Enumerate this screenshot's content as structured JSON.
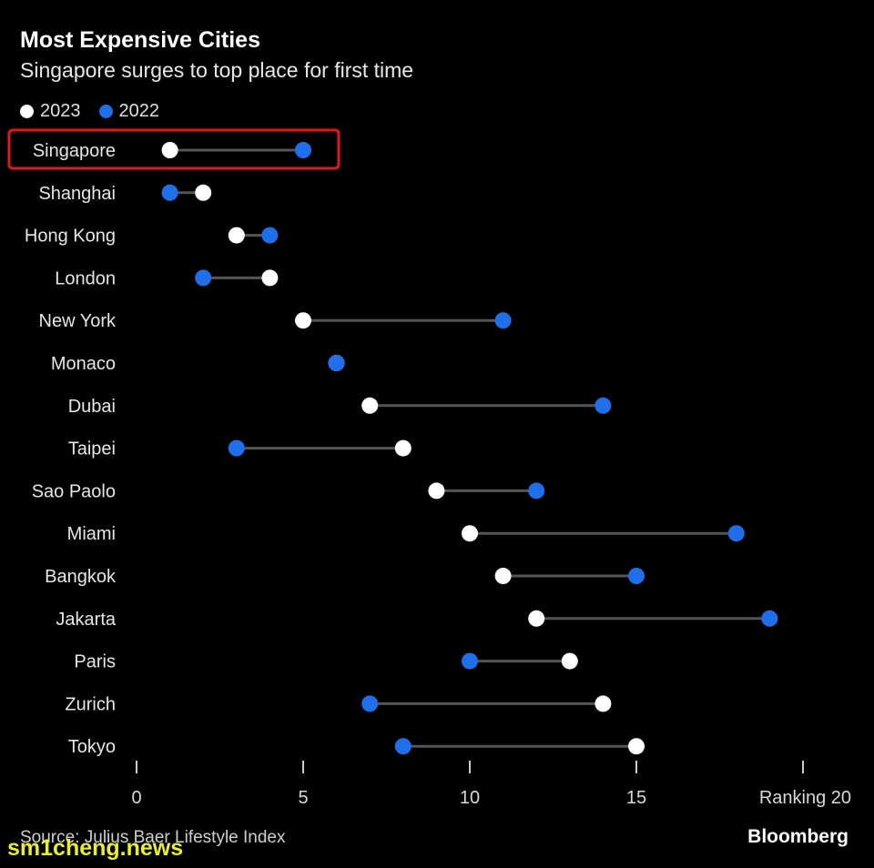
{
  "chart_data": {
    "type": "dot-plot",
    "title": "Most Expensive Cities",
    "subtitle": "Singapore surges to top place for first time",
    "series": [
      {
        "name": "2023",
        "color": "#ffffff"
      },
      {
        "name": "2022",
        "color": "#1f6feb"
      }
    ],
    "categories": [
      "Singapore",
      "Shanghai",
      "Hong Kong",
      "London",
      "New York",
      "Monaco",
      "Dubai",
      "Taipei",
      "Sao Paolo",
      "Miami",
      "Bangkok",
      "Jakarta",
      "Paris",
      "Zurich",
      "Tokyo"
    ],
    "rank_2023": [
      1,
      2,
      3,
      4,
      5,
      6,
      7,
      8,
      9,
      10,
      11,
      12,
      13,
      14,
      15
    ],
    "rank_2022": [
      5,
      1,
      4,
      2,
      11,
      6,
      14,
      3,
      12,
      18,
      15,
      19,
      10,
      7,
      8
    ],
    "highlight": "Singapore",
    "x_ticks": [
      "0",
      "5",
      "10",
      "15"
    ],
    "x_axis_label": "Ranking 20",
    "xlim": [
      0,
      20
    ],
    "grid": false,
    "legend_position": "top-left"
  },
  "footer": {
    "source": "Source: Julius Baer Lifestyle Index",
    "brand": "Bloomberg",
    "watermark": "sm1cheng.news"
  },
  "colors": {
    "background": "#000000",
    "connector": "#555555",
    "highlight_box": "#e0191f",
    "dot_2023": "#ffffff",
    "dot_2022": "#1f6feb"
  }
}
